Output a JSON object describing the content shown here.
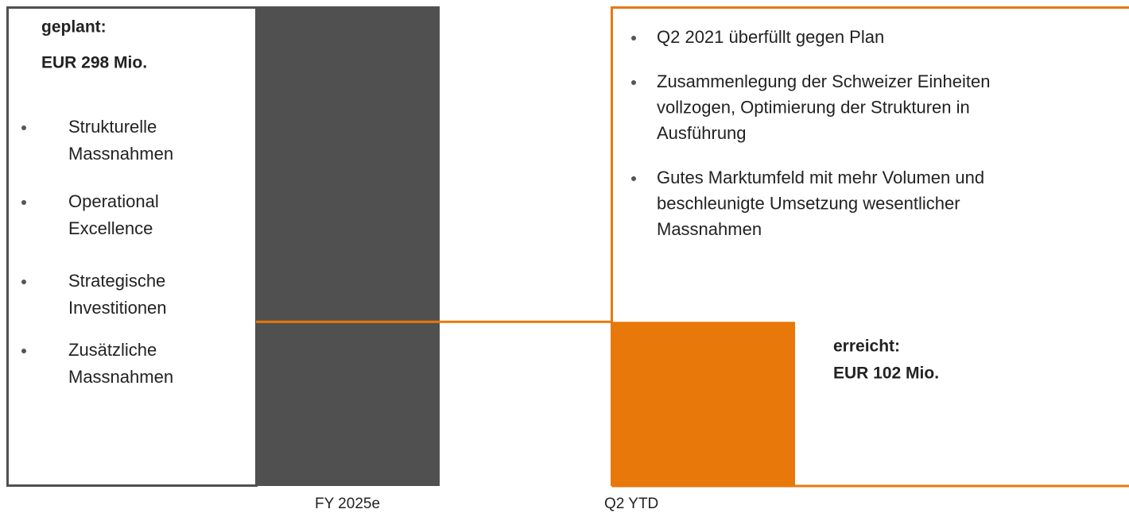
{
  "chart_data": {
    "type": "bar",
    "categories": [
      "FY 2025e",
      "Q2 YTD"
    ],
    "values": [
      298,
      102
    ],
    "value_labels": [
      "EUR 298 Mio.",
      "EUR 102 Mio."
    ],
    "value_captions": [
      "geplant:",
      "erreicht:"
    ],
    "colors": [
      "#505050",
      "#e8780a"
    ],
    "ylim": [
      0,
      298
    ],
    "left_notes": [
      [
        "Strukturelle",
        "Massnahmen"
      ],
      [
        "Operational",
        "Excellence"
      ],
      [
        "Strategische",
        "Investitionen"
      ],
      [
        "Zusätzliche",
        "Massnahmen"
      ]
    ],
    "right_notes": [
      [
        "Q2 2021 überfüllt gegen Plan"
      ],
      [
        "Zusammenlegung der Schweizer Einheiten",
        "vollzogen, Optimierung der Strukturen in",
        "Ausführung"
      ],
      [
        "Gutes Marktumfeld mit mehr Volumen und",
        "beschleunigte Umsetzung wesentlicher",
        "Massnahmen"
      ]
    ]
  }
}
